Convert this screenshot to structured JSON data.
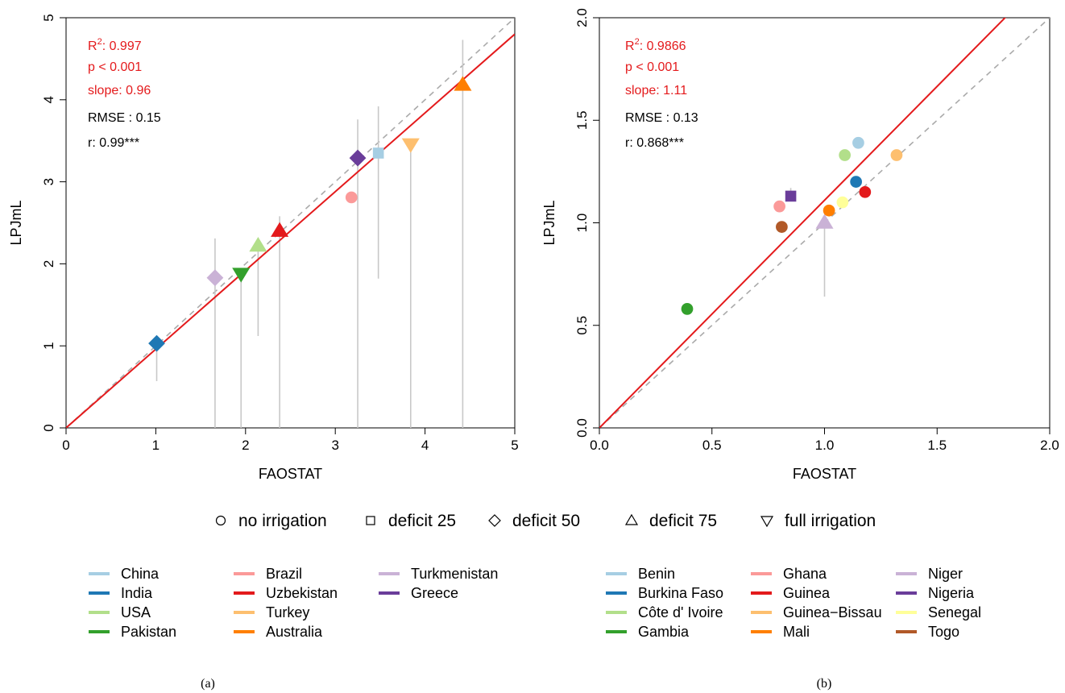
{
  "shape_legend": [
    {
      "shape": "circle",
      "label": "no irrigation"
    },
    {
      "shape": "square",
      "label": "deficit 25"
    },
    {
      "shape": "diamond",
      "label": "deficit 50"
    },
    {
      "shape": "triangle-up",
      "label": "deficit 75"
    },
    {
      "shape": "triangle-down",
      "label": "full irrigation"
    }
  ],
  "captions": [
    "(a)",
    "(b)"
  ],
  "chart_data": [
    {
      "type": "scatter",
      "xlabel": "FAOSTAT",
      "ylabel": "LPJmL",
      "xlim": [
        0,
        5
      ],
      "ylim": [
        0,
        5
      ],
      "xticks": [
        0,
        1,
        2,
        3,
        4,
        5
      ],
      "yticks": [
        0,
        1,
        2,
        3,
        4,
        5
      ],
      "tick_labels_x": [
        "0",
        "1",
        "2",
        "3",
        "4",
        "5"
      ],
      "tick_labels_y": [
        "0",
        "1",
        "2",
        "3",
        "4",
        "5"
      ],
      "grid": false,
      "one_to_one_line": true,
      "regression_slope": 0.96,
      "stats": [
        {
          "text": "R",
          "sup": "2",
          "rest": ": 0.997",
          "color": "#e41a1c"
        },
        {
          "text": "p < 0.001",
          "color": "#e41a1c"
        },
        {
          "text": "slope: 0.96",
          "color": "#e41a1c"
        },
        {
          "text": "RMSE : 0.15",
          "color": "#000000"
        },
        {
          "text": "r: 0.99***",
          "color": "#000000"
        }
      ],
      "points": [
        {
          "x": 1.01,
          "y": 1.03,
          "name": "India",
          "color": "#1f78b4",
          "shape": "diamond",
          "err_low": 0.57,
          "err_high": 1.03
        },
        {
          "x": 1.66,
          "y": 1.83,
          "name": "Turkmenistan",
          "color": "#cab2d6",
          "shape": "diamond",
          "err_low": 0.0,
          "err_high": 2.31
        },
        {
          "x": 1.95,
          "y": 1.88,
          "name": "Pakistan",
          "color": "#33a02c",
          "shape": "triangle-down",
          "err_low": 0.0,
          "err_high": 1.88
        },
        {
          "x": 2.14,
          "y": 2.22,
          "name": "USA",
          "color": "#b2df8a",
          "shape": "triangle-up",
          "err_low": 1.12,
          "err_high": 2.22
        },
        {
          "x": 2.38,
          "y": 2.4,
          "name": "Uzbekistan",
          "color": "#e31a1c",
          "shape": "triangle-up",
          "err_low": 0.0,
          "err_high": 2.58
        },
        {
          "x": 3.18,
          "y": 2.81,
          "name": "Brazil",
          "color": "#fb9a99",
          "shape": "circle",
          "err_low": 2.81,
          "err_high": 2.81
        },
        {
          "x": 3.25,
          "y": 3.29,
          "name": "Greece",
          "color": "#6a3d9a",
          "shape": "diamond",
          "err_low": 0.0,
          "err_high": 3.76
        },
        {
          "x": 3.48,
          "y": 3.35,
          "name": "China",
          "color": "#a6cee3",
          "shape": "square",
          "err_low": 1.82,
          "err_high": 3.92
        },
        {
          "x": 3.84,
          "y": 3.46,
          "name": "Turkey",
          "color": "#fdbf6f",
          "shape": "triangle-down",
          "err_low": 0.0,
          "err_high": 3.46
        },
        {
          "x": 4.42,
          "y": 4.18,
          "name": "Australia",
          "color": "#ff7f00",
          "shape": "triangle-up",
          "err_low": 0.0,
          "err_high": 4.73
        }
      ],
      "legend": [
        [
          {
            "name": "China",
            "color": "#a6cee3"
          },
          {
            "name": "India",
            "color": "#1f78b4"
          },
          {
            "name": "USA",
            "color": "#b2df8a"
          },
          {
            "name": "Pakistan",
            "color": "#33a02c"
          }
        ],
        [
          {
            "name": "Brazil",
            "color": "#fb9a99"
          },
          {
            "name": "Uzbekistan",
            "color": "#e31a1c"
          },
          {
            "name": "Turkey",
            "color": "#fdbf6f"
          },
          {
            "name": "Australia",
            "color": "#ff7f00"
          }
        ],
        [
          {
            "name": "Turkmenistan",
            "color": "#cab2d6"
          },
          {
            "name": "Greece",
            "color": "#6a3d9a"
          }
        ]
      ]
    },
    {
      "type": "scatter",
      "xlabel": "FAOSTAT",
      "ylabel": "LPJmL",
      "xlim": [
        0,
        2
      ],
      "ylim": [
        0,
        2
      ],
      "xticks": [
        0,
        0.5,
        1,
        1.5,
        2
      ],
      "yticks": [
        0,
        0.5,
        1,
        1.5,
        2
      ],
      "tick_labels_x": [
        "0.0",
        "0.5",
        "1.0",
        "1.5",
        "2.0"
      ],
      "tick_labels_y": [
        "0.0",
        "0.5",
        "1.0",
        "1.5",
        "2.0"
      ],
      "grid": false,
      "one_to_one_line": true,
      "regression_slope": 1.11,
      "stats": [
        {
          "text": "R",
          "sup": "2",
          "rest": ": 0.9866",
          "color": "#e41a1c"
        },
        {
          "text": "p < 0.001",
          "color": "#e41a1c"
        },
        {
          "text": "slope: 1.11",
          "color": "#e41a1c"
        },
        {
          "text": "RMSE : 0.13",
          "color": "#000000"
        },
        {
          "text": "r: 0.868***",
          "color": "#000000"
        }
      ],
      "points": [
        {
          "x": 0.39,
          "y": 0.58,
          "name": "Gambia",
          "color": "#33a02c",
          "shape": "circle"
        },
        {
          "x": 0.8,
          "y": 1.08,
          "name": "Ghana",
          "color": "#fb9a99",
          "shape": "circle"
        },
        {
          "x": 0.81,
          "y": 0.98,
          "name": "Togo",
          "color": "#b15928",
          "shape": "circle"
        },
        {
          "x": 0.85,
          "y": 1.13,
          "name": "Nigeria",
          "color": "#6a3d9a",
          "shape": "square",
          "err_low": 1.13,
          "err_high": 1.17
        },
        {
          "x": 1.0,
          "y": 1.0,
          "name": "Niger",
          "color": "#cab2d6",
          "shape": "triangle-up",
          "err_low": 0.64,
          "err_high": 1.0
        },
        {
          "x": 1.02,
          "y": 1.06,
          "name": "Mali",
          "color": "#ff7f00",
          "shape": "circle"
        },
        {
          "x": 1.08,
          "y": 1.1,
          "name": "Senegal",
          "color": "#ffff99",
          "shape": "circle"
        },
        {
          "x": 1.09,
          "y": 1.33,
          "name": "Côte d' Ivoire",
          "color": "#b2df8a",
          "shape": "circle"
        },
        {
          "x": 1.14,
          "y": 1.2,
          "name": "Burkina Faso",
          "color": "#1f78b4",
          "shape": "circle"
        },
        {
          "x": 1.15,
          "y": 1.39,
          "name": "Benin",
          "color": "#a6cee3",
          "shape": "circle"
        },
        {
          "x": 1.18,
          "y": 1.15,
          "name": "Guinea",
          "color": "#e31a1c",
          "shape": "circle"
        },
        {
          "x": 1.32,
          "y": 1.33,
          "name": "Guinea-Bissau",
          "color": "#fdbf6f",
          "shape": "circle"
        }
      ],
      "legend": [
        [
          {
            "name": "Benin",
            "color": "#a6cee3"
          },
          {
            "name": "Burkina Faso",
            "color": "#1f78b4"
          },
          {
            "name": "Côte d' Ivoire",
            "color": "#b2df8a"
          },
          {
            "name": "Gambia",
            "color": "#33a02c"
          }
        ],
        [
          {
            "name": "Ghana",
            "color": "#fb9a99"
          },
          {
            "name": "Guinea",
            "color": "#e31a1c"
          },
          {
            "name": "Guinea−Bissau",
            "color": "#fdbf6f"
          },
          {
            "name": "Mali",
            "color": "#ff7f00"
          }
        ],
        [
          {
            "name": "Niger",
            "color": "#cab2d6"
          },
          {
            "name": "Nigeria",
            "color": "#6a3d9a"
          },
          {
            "name": "Senegal",
            "color": "#ffff99"
          },
          {
            "name": "Togo",
            "color": "#b15928"
          }
        ]
      ]
    }
  ]
}
